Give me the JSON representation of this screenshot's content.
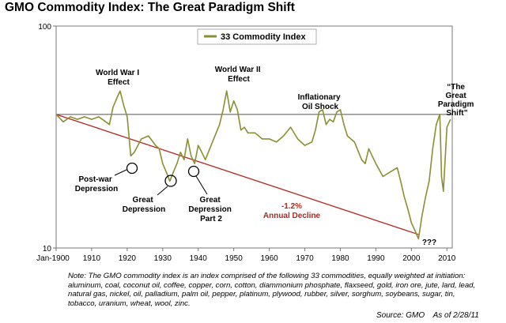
{
  "title": "GMO Commodity Index:  The Great Paradigm Shift",
  "chart_data": {
    "type": "line",
    "title": "GMO Commodity Index:  The Great Paradigm Shift",
    "y_scale": "log",
    "ylim": [
      10,
      100
    ],
    "y_ticks": [
      "100",
      "10"
    ],
    "xlim": [
      1900,
      2011.5
    ],
    "x_ticks": [
      "Jan-1900",
      "1910",
      "1920",
      "1930",
      "1940",
      "1950",
      "1960",
      "1970",
      "1980",
      "1990",
      "2000",
      "2010"
    ],
    "legend": {
      "label": "33 Commodity Index",
      "position": "top-center"
    },
    "grid": false,
    "colors": {
      "series": "#8a8f32",
      "trend": "#b5261e",
      "reference": "#555555"
    },
    "series": [
      {
        "name": "33 Commodity Index",
        "x": [
          1900,
          1902,
          1904,
          1906,
          1908,
          1910,
          1912,
          1914,
          1915,
          1916,
          1917,
          1918,
          1919,
          1920,
          1921,
          1922,
          1924,
          1926,
          1928,
          1929,
          1930,
          1931,
          1932,
          1933,
          1934,
          1935,
          1936,
          1937,
          1938,
          1939,
          1940,
          1941,
          1942,
          1944,
          1946,
          1947,
          1948,
          1949,
          1950,
          1951,
          1952,
          1953,
          1954,
          1956,
          1958,
          1960,
          1962,
          1964,
          1966,
          1968,
          1970,
          1972,
          1973,
          1974,
          1975,
          1976,
          1977,
          1978,
          1979,
          1980,
          1981,
          1982,
          1984,
          1986,
          1987,
          1988,
          1990,
          1992,
          1994,
          1996,
          1997,
          1998,
          1999,
          2000,
          2001,
          2002,
          2003,
          2004,
          2005,
          2006,
          2007,
          2008,
          2008.5,
          2009,
          2010,
          2011
        ],
        "values": [
          40,
          37,
          39,
          38,
          39,
          38,
          39,
          37,
          36,
          43,
          47,
          51,
          44,
          39,
          26,
          27,
          31,
          32,
          29,
          28,
          24,
          22,
          20,
          22,
          24,
          27,
          25,
          31,
          26,
          24,
          29,
          27,
          25,
          30,
          36,
          42,
          51,
          41,
          46,
          42,
          34,
          35,
          33,
          33,
          31,
          31,
          30,
          32,
          35,
          31,
          29,
          30,
          34,
          41,
          42,
          36,
          38,
          37,
          41,
          42,
          36,
          32,
          30,
          25,
          24,
          28,
          24,
          21,
          22,
          23,
          20,
          17,
          15,
          13,
          12,
          11,
          14,
          17,
          20,
          28,
          36,
          40,
          21,
          18,
          35,
          38
        ]
      }
    ],
    "trend_line": {
      "name": "-1.2% Annual Decline",
      "x": [
        1900,
        2002
      ],
      "values": [
        40,
        11.5
      ],
      "annual_rate_label": "-1.2%",
      "text": "Annual Decline"
    },
    "reference_line": {
      "value": 40
    },
    "annotations": [
      {
        "text": [
          "World War I",
          "Effect"
        ]
      },
      {
        "text": [
          "World War II",
          "Effect"
        ]
      },
      {
        "text": [
          "Inflationary",
          "Oil Shock"
        ]
      },
      {
        "text": [
          "“The",
          "Great",
          "Paradigm",
          "Shift”"
        ]
      },
      {
        "text": [
          "Post-war",
          "Depression"
        ]
      },
      {
        "text": [
          "Great",
          "Depression"
        ]
      },
      {
        "text": [
          "Great",
          "Depression",
          "Part 2"
        ]
      },
      {
        "text": [
          "???"
        ]
      }
    ]
  },
  "note": "Note: The GMO commodity index is an index comprised of the following 33 commodities, equally weighted at initiation:  aluminum, coal, coconut oil, coffee, copper, corn, cotton, diammonium phosphate, flaxseed, gold, iron ore, jute, lard, lead, natural gas, nickel, oil, palladium, palm oil, pepper, platinum, plywood, rubber, silver, sorghum, soybeans, sugar, tin, tobacco, uranium, wheat, wool, zinc.",
  "source": {
    "label": "Source:  GMO",
    "date": "As of 2/28/11"
  }
}
